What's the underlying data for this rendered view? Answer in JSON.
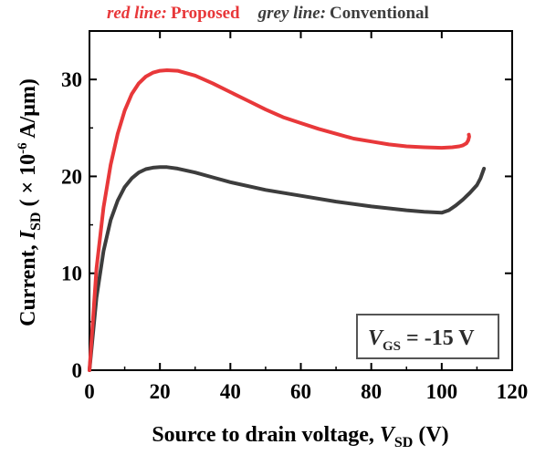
{
  "chart_data": {
    "type": "line",
    "legend": {
      "red_label": "red line:",
      "red_name": "Proposed",
      "grey_label": "grey line:",
      "grey_name": "Conventional",
      "placement": "top"
    },
    "xlabel": {
      "text": "Source to drain voltage, ",
      "symbol": "V",
      "subscript": "SD",
      "unit": " (V)"
    },
    "ylabel": {
      "prefix": "Current, ",
      "symbol": "I",
      "subscript": "SD",
      "unit_open": " ( × 10",
      "unit_exp": "-6",
      "unit_close": " A/μm)"
    },
    "annotation": {
      "symbol": "V",
      "subscript": "GS",
      "value": " = -15 V"
    },
    "xlim": [
      0,
      120
    ],
    "ylim": [
      0,
      35
    ],
    "xticks": [
      "0",
      "20",
      "40",
      "60",
      "80",
      "100",
      "120"
    ],
    "xtick_values": [
      0,
      20,
      40,
      60,
      80,
      100,
      120
    ],
    "yticks": [
      "0",
      "10",
      "20",
      "30"
    ],
    "ytick_values": [
      0,
      10,
      20,
      30
    ],
    "grid": false,
    "series": [
      {
        "name": "Proposed",
        "color": "#e8383a",
        "x": [
          0,
          2,
          4,
          6,
          8,
          10,
          12,
          14,
          16,
          18,
          20,
          22,
          25,
          30,
          35,
          40,
          45,
          50,
          55,
          60,
          65,
          70,
          75,
          80,
          85,
          90,
          95,
          100,
          103,
          105,
          106,
          107,
          107.5,
          107.8,
          107.7
        ],
        "y": [
          0,
          10.5,
          16.8,
          21.2,
          24.4,
          26.8,
          28.5,
          29.6,
          30.3,
          30.7,
          30.9,
          30.95,
          30.9,
          30.4,
          29.6,
          28.7,
          27.8,
          26.9,
          26.1,
          25.5,
          24.9,
          24.4,
          23.9,
          23.6,
          23.3,
          23.1,
          23.0,
          22.95,
          23.0,
          23.1,
          23.2,
          23.4,
          23.7,
          24.1,
          24.3
        ]
      },
      {
        "name": "Conventional",
        "color": "#3d3d3d",
        "x": [
          0,
          2,
          4,
          6,
          8,
          10,
          12,
          14,
          16,
          18,
          20,
          22,
          25,
          30,
          35,
          40,
          50,
          60,
          70,
          80,
          90,
          95,
          100,
          102,
          104,
          106,
          108,
          110,
          111,
          112
        ],
        "y": [
          0,
          7.5,
          12.3,
          15.5,
          17.5,
          18.9,
          19.8,
          20.4,
          20.75,
          20.9,
          20.95,
          20.95,
          20.8,
          20.4,
          19.9,
          19.4,
          18.6,
          18.0,
          17.4,
          16.9,
          16.5,
          16.35,
          16.25,
          16.5,
          17.0,
          17.6,
          18.3,
          19.1,
          19.8,
          20.8
        ]
      }
    ]
  }
}
